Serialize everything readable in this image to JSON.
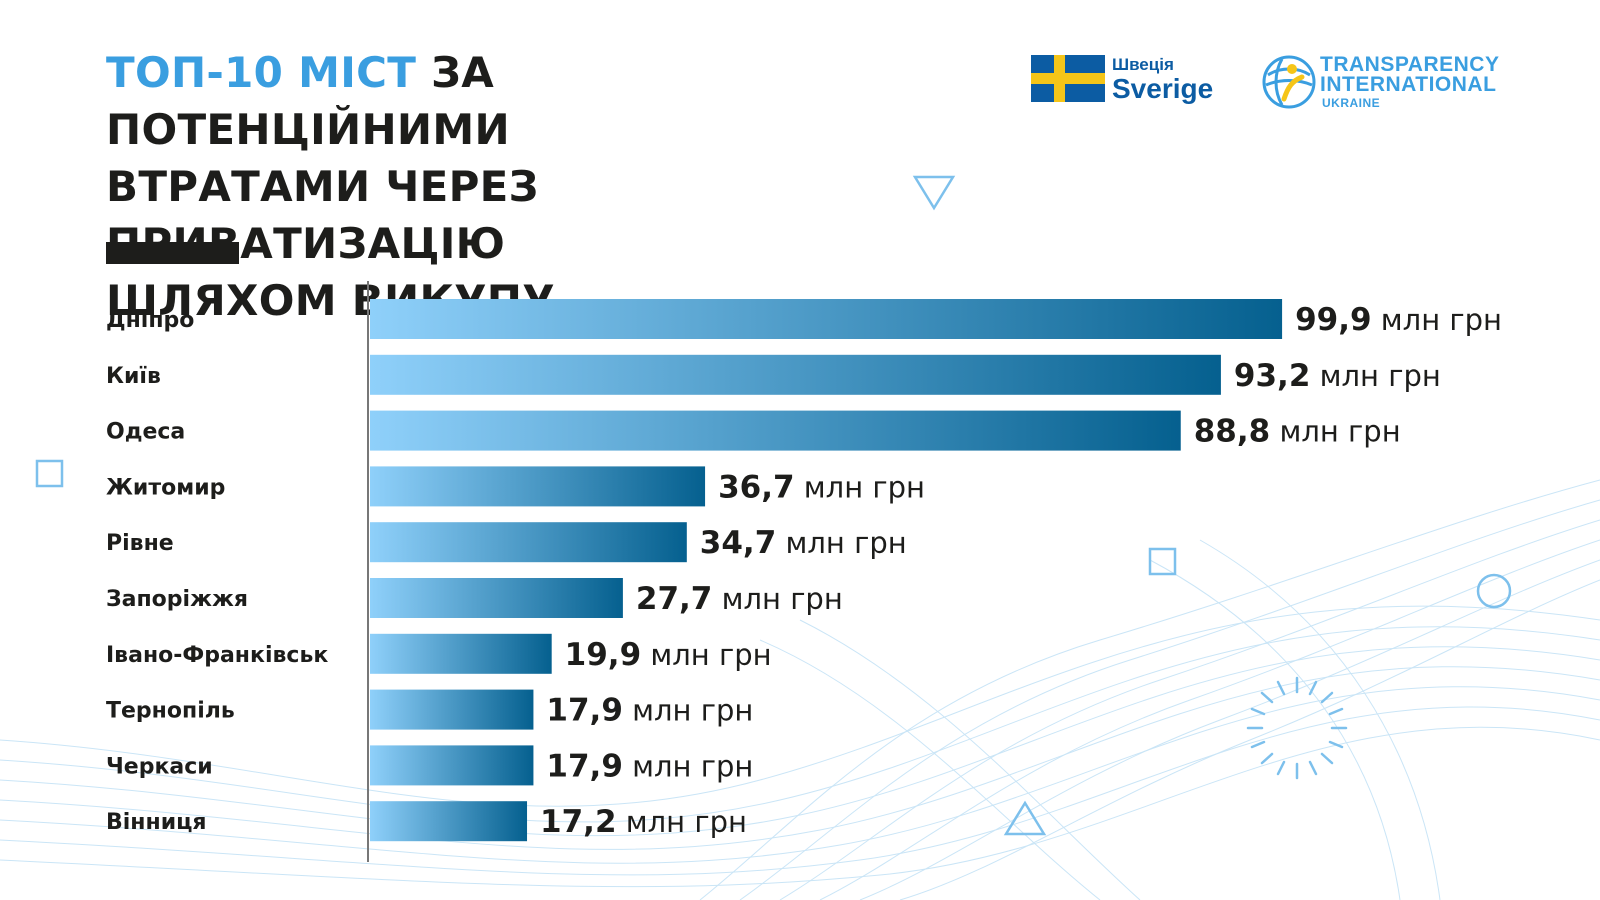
{
  "header": {
    "title_highlight": "ТОП-10 МІСТ",
    "title_line1_rest": " ЗА ПОТЕНЦІЙНИМИ",
    "title_line2": "ВТРАТАМИ ЧЕРЕЗ ПРИВАТИЗАЦІЮ",
    "title_line3": "ШЛЯХОМ ВИКУПУ"
  },
  "logos": {
    "sweden_small": "Швеція",
    "sweden_big": "Sverige",
    "ti_line1": "TRANSPARENCY",
    "ti_line2": "INTERNATIONAL",
    "ti_line3": "UKRAINE"
  },
  "colors": {
    "accent": "#3a9ee0",
    "bar_light": "#8fd0fa",
    "bar_dark": "#05608f",
    "text": "#1d1d1b"
  },
  "chart_data": {
    "type": "bar",
    "orientation": "horizontal",
    "title": "ТОП-10 МІСТ ЗА ПОТЕНЦІЙНИМИ ВТРАТАМИ ЧЕРЕЗ ПРИВАТИЗАЦІЮ ШЛЯХОМ ВИКУПУ",
    "categories": [
      "Дніпро",
      "Київ",
      "Одеса",
      "Житомир",
      "Рівне",
      "Запоріжжя",
      "Івано-Франківськ",
      "Тернопіль",
      "Черкаси",
      "Вінниця"
    ],
    "values": [
      99.9,
      93.2,
      88.8,
      36.7,
      34.7,
      27.7,
      19.9,
      17.9,
      17.9,
      17.2
    ],
    "value_labels": [
      "99,9",
      "93,2",
      "88,8",
      "36,7",
      "34,7",
      "27,7",
      "19,9",
      "17,9",
      "17,9",
      "17,2"
    ],
    "unit": "млн грн",
    "xlim": [
      0,
      100
    ]
  }
}
